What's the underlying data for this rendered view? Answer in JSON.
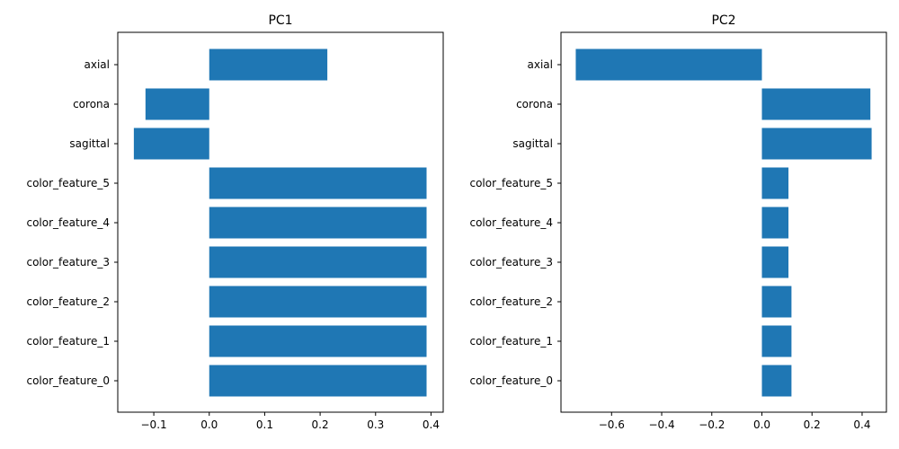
{
  "chart_data": [
    {
      "type": "bar",
      "orientation": "horizontal",
      "title": "PC1",
      "categories": [
        "axial",
        "corona",
        "sagittal",
        "color_feature_5",
        "color_feature_4",
        "color_feature_3",
        "color_feature_2",
        "color_feature_1",
        "color_feature_0"
      ],
      "values": [
        0.213,
        -0.115,
        -0.136,
        0.392,
        0.392,
        0.392,
        0.392,
        0.392,
        0.392
      ],
      "xlim": [
        -0.165,
        0.422
      ],
      "xticks": [
        -0.1,
        0.0,
        0.1,
        0.2,
        0.3,
        0.4
      ],
      "xtick_labels": [
        "−0.1",
        "0.0",
        "0.1",
        "0.2",
        "0.3",
        "0.4"
      ],
      "xlabel": "",
      "ylabel": "",
      "color": "#1f77b4",
      "grid": false
    },
    {
      "type": "bar",
      "orientation": "horizontal",
      "title": "PC2",
      "categories": [
        "axial",
        "corona",
        "sagittal",
        "color_feature_5",
        "color_feature_4",
        "color_feature_3",
        "color_feature_2",
        "color_feature_1",
        "color_feature_0"
      ],
      "values": [
        -0.743,
        0.433,
        0.438,
        0.106,
        0.106,
        0.106,
        0.118,
        0.118,
        0.118
      ],
      "xlim": [
        -0.802,
        0.497
      ],
      "xticks": [
        -0.6,
        -0.4,
        -0.2,
        0.0,
        0.2,
        0.4
      ],
      "xtick_labels": [
        "−0.6",
        "−0.4",
        "−0.2",
        "0.0",
        "0.2",
        "0.4"
      ],
      "xlabel": "",
      "ylabel": "",
      "color": "#1f77b4",
      "grid": false
    }
  ]
}
